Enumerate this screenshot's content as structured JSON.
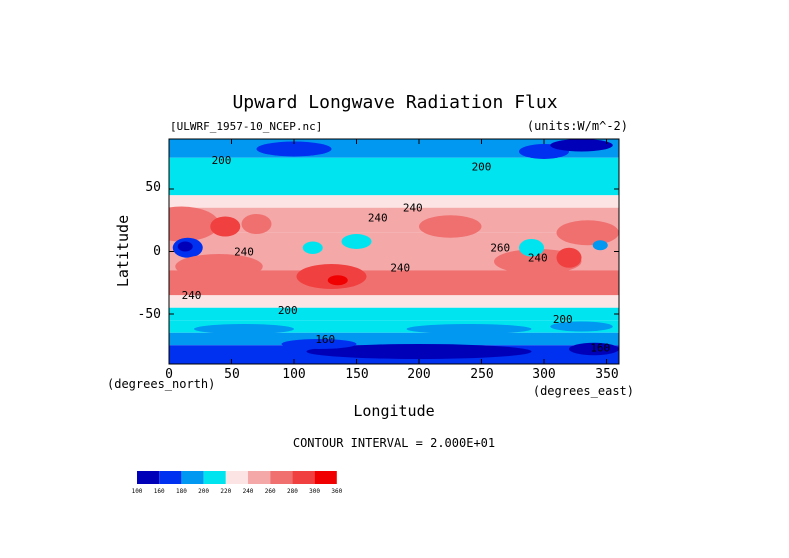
{
  "chart_data": {
    "type": "heatmap",
    "title": "Upward Longwave Radiation Flux",
    "source_label": "[ULWRF_1957-10_NCEP.nc]",
    "units_label": "(units:W/m^-2)",
    "xlabel": "Longitude",
    "ylabel": "Latitude",
    "x_unit_label": "(degrees_east)",
    "y_unit_label": "(degrees_north)",
    "xlim": [
      0,
      360
    ],
    "ylim": [
      -90,
      90
    ],
    "x_ticks": [
      "0",
      "50",
      "100",
      "150",
      "200",
      "250",
      "300",
      "350"
    ],
    "y_ticks": [
      "50",
      "0",
      "-50"
    ],
    "contour_interval_label": "CONTOUR INTERVAL = 2.000E+01",
    "contour_labels": [
      {
        "text": "200",
        "lon": 42,
        "lat": 70
      },
      {
        "text": "200",
        "lon": 250,
        "lat": 65
      },
      {
        "text": "240",
        "lon": 167,
        "lat": 24
      },
      {
        "text": "240",
        "lon": 195,
        "lat": 32
      },
      {
        "text": "240",
        "lon": 60,
        "lat": -3
      },
      {
        "text": "240",
        "lon": 185,
        "lat": -16
      },
      {
        "text": "240",
        "lon": 18,
        "lat": -38
      },
      {
        "text": "260",
        "lon": 265,
        "lat": 0
      },
      {
        "text": "240",
        "lon": 295,
        "lat": -8
      },
      {
        "text": "200",
        "lon": 95,
        "lat": -50
      },
      {
        "text": "200",
        "lon": 315,
        "lat": -57
      },
      {
        "text": "160",
        "lon": 125,
        "lat": -73
      },
      {
        "text": "160",
        "lon": 345,
        "lat": -80
      }
    ],
    "color_scale": {
      "bins": [
        {
          "min": 100,
          "max": 160,
          "color": "#0000b8"
        },
        {
          "min": 160,
          "max": 180,
          "color": "#0030f0"
        },
        {
          "min": 180,
          "max": 200,
          "color": "#0098f0"
        },
        {
          "min": 200,
          "max": 220,
          "color": "#00e4f0"
        },
        {
          "min": 220,
          "max": 240,
          "color": "#fce4e4"
        },
        {
          "min": 240,
          "max": 260,
          "color": "#f4a8a8"
        },
        {
          "min": 260,
          "max": 280,
          "color": "#f07070"
        },
        {
          "min": 280,
          "max": 300,
          "color": "#f04040"
        },
        {
          "min": 300,
          "max": 360,
          "color": "#f00000"
        }
      ],
      "tick_labels": [
        "100",
        "160",
        "180",
        "200",
        "220",
        "240",
        "260",
        "280",
        "300",
        "360"
      ]
    },
    "zonal_structure": [
      {
        "lat_min": 75,
        "lat_max": 90,
        "value": 180
      },
      {
        "lat_min": 60,
        "lat_max": 75,
        "value": 200
      },
      {
        "lat_min": 45,
        "lat_max": 60,
        "value": 215
      },
      {
        "lat_min": 35,
        "lat_max": 45,
        "value": 230
      },
      {
        "lat_min": 15,
        "lat_max": 35,
        "value": 250
      },
      {
        "lat_min": -15,
        "lat_max": 15,
        "value": 245
      },
      {
        "lat_min": -35,
        "lat_max": -15,
        "value": 265
      },
      {
        "lat_min": -45,
        "lat_max": -35,
        "value": 230
      },
      {
        "lat_min": -55,
        "lat_max": -45,
        "value": 210
      },
      {
        "lat_min": -65,
        "lat_max": -55,
        "value": 200
      },
      {
        "lat_min": -75,
        "lat_max": -65,
        "value": 180
      },
      {
        "lat_min": -90,
        "lat_max": -75,
        "value": 160
      }
    ]
  }
}
